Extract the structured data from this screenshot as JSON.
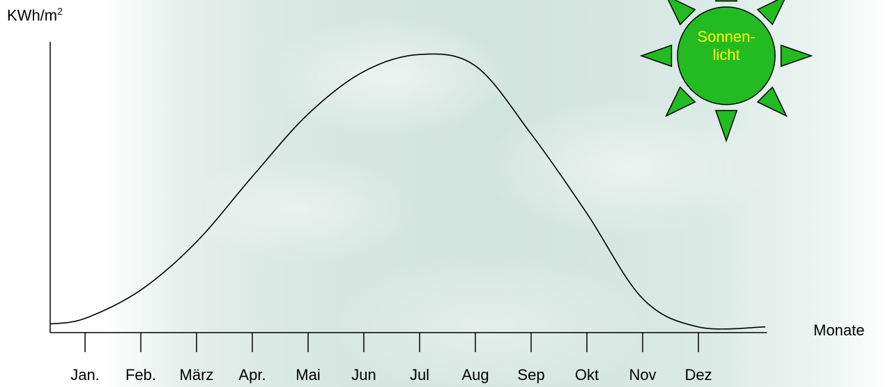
{
  "chart_data": {
    "type": "line",
    "ylabel": "KWh/m",
    "ylabel_sup": "2",
    "xlabel": "Monate",
    "categories": [
      "Jan.",
      "Feb.",
      "März",
      "Apr.",
      "Mai",
      "Jun",
      "Jul",
      "Aug",
      "Sep",
      "Okt",
      "Nov",
      "Dez"
    ],
    "series": [
      {
        "values": [
          0.05,
          0.15,
          0.32,
          0.55,
          0.77,
          0.92,
          0.98,
          0.94,
          0.7,
          0.42,
          0.12,
          0.02
        ]
      }
    ],
    "ylim": [
      0,
      1
    ],
    "grid": false,
    "line_color": "#000000"
  },
  "sun": {
    "label_line1": "Sonnen-",
    "label_line2": "licht",
    "fill_color": "#22bb22",
    "text_color": "#ffff00"
  },
  "background_color": "#d2e4de"
}
